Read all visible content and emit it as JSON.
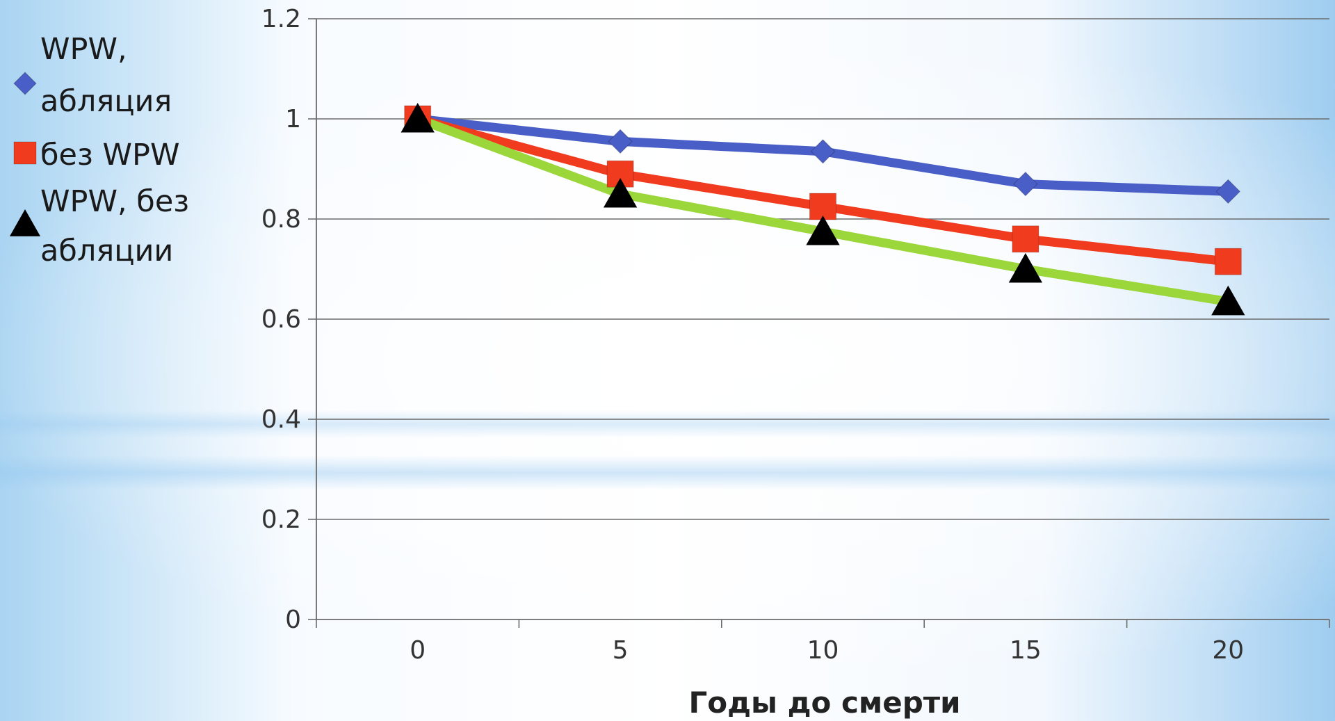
{
  "chart_data": {
    "type": "line",
    "title": "",
    "xlabel": "Годы до смерти",
    "ylabel": "",
    "x": [
      0,
      5,
      10,
      15,
      20
    ],
    "x_tick_labels": [
      "0",
      "5",
      "10",
      "15",
      "20"
    ],
    "ylim": [
      0,
      1.2
    ],
    "y_tick_labels": [
      "0",
      "0.2",
      "0.4",
      "0.6",
      "0.8",
      "1",
      "1.2"
    ],
    "y_ticks": [
      0,
      0.2,
      0.4,
      0.6,
      0.8,
      1.0,
      1.2
    ],
    "grid": true,
    "legend_placement": "left",
    "series": [
      {
        "name": "WPW, абляция",
        "name_lines": [
          "WPW,",
          "абляция"
        ],
        "values": [
          1.0,
          0.955,
          0.935,
          0.87,
          0.855
        ],
        "line_color": "#4a5ec7",
        "marker": "diamond",
        "marker_color": "#4a5ec7"
      },
      {
        "name": "без WPW",
        "name_lines": [
          "без WPW"
        ],
        "values": [
          1.0,
          0.89,
          0.825,
          0.76,
          0.715
        ],
        "line_color": "#f03b1e",
        "marker": "square",
        "marker_color": "#f03b1e"
      },
      {
        "name": "WPW, без абляции",
        "name_lines": [
          "WPW, без",
          "абляции"
        ],
        "values": [
          1.0,
          0.85,
          0.775,
          0.7,
          0.635
        ],
        "line_color": "#9bd63b",
        "marker": "triangle",
        "marker_color": "#000000"
      }
    ]
  }
}
